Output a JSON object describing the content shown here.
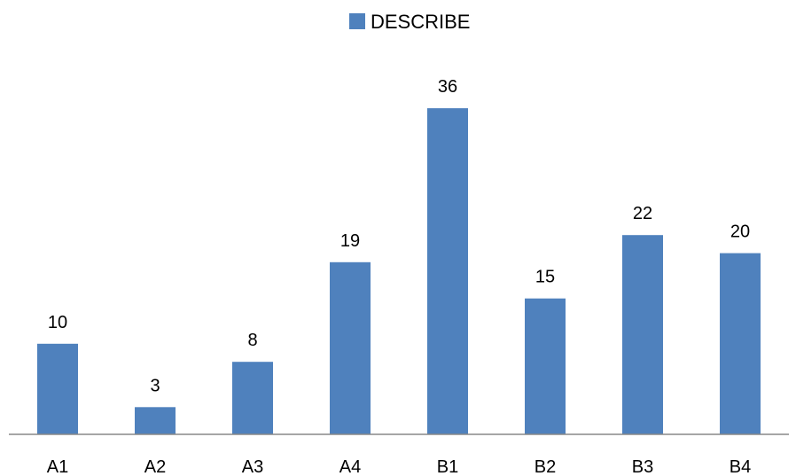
{
  "chart_data": {
    "type": "bar",
    "categories": [
      "A1",
      "A2",
      "A3",
      "A4",
      "B1",
      "B2",
      "B3",
      "B4"
    ],
    "series": [
      {
        "name": "DESCRIBE",
        "values": [
          10,
          3,
          8,
          19,
          36,
          15,
          22,
          20
        ],
        "color": "#4f81bd"
      }
    ],
    "data_labels": true,
    "legend": {
      "position": "top"
    },
    "axis_color": "#888888",
    "ylim": [
      0,
      40
    ],
    "grid": false,
    "y_axis_visible": false
  }
}
